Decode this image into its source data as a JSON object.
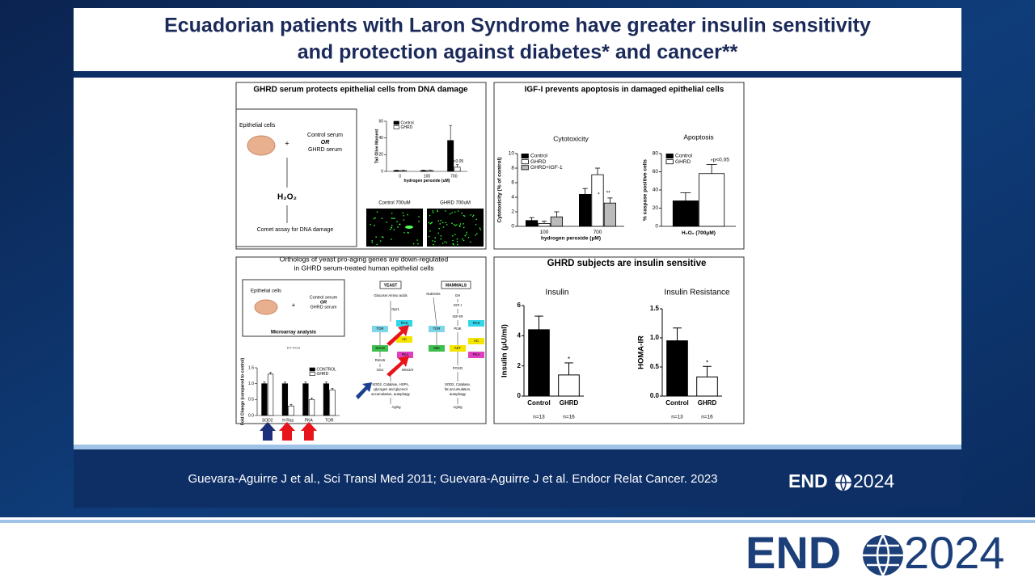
{
  "header": {
    "title": [
      "Ecuadorian patients with Laron Syndrome have greater insulin sensitivity",
      "and protection against diabetes* and cancer**"
    ]
  },
  "panels": [
    {
      "title": "GHRD serum protects epithelial cells from DNA damage",
      "protocol": {
        "cells": "Epithelial cells",
        "plus": "+",
        "option_a": "Control serum",
        "or": "OR",
        "option_b": "GHRD serum",
        "treatment": "H₂O₂",
        "assay": "Comet assay for DNA damage"
      },
      "images": [
        "Control 700uM",
        "GHRD 700uM"
      ],
      "chart": {
        "type": "bar",
        "ylabel": "Tail Olive Moment",
        "xlabel": "hydrogen peroxide (uM)",
        "categories": [
          0,
          100,
          700
        ],
        "series": [
          {
            "name": "Control",
            "color": "#000000",
            "values": [
              1,
              1,
              37
            ],
            "errors": [
              0.5,
              0.5,
              18
            ]
          },
          {
            "name": "GHRD",
            "color": "#ffffff",
            "values": [
              1,
              1,
              5
            ],
            "errors": [
              0.5,
              0.5,
              3
            ]
          }
        ],
        "ylim": [
          0,
          60
        ],
        "yticks": [
          0,
          20,
          40,
          60
        ],
        "notes": [
          "p<0.05"
        ]
      }
    },
    {
      "title": "IGF-I prevents apoptosis in damaged epithelial cells",
      "charts": [
        {
          "type": "bar",
          "title": "Cytotoxicity",
          "ylabel": "Cytotoxicity (% of control)",
          "xlabel": "hydrogen peroxide (μM)",
          "categories": [
            100,
            700
          ],
          "series": [
            {
              "name": "Control",
              "color": "#000000",
              "values": [
                0.8,
                4.4
              ],
              "errors": [
                0.4,
                0.8
              ]
            },
            {
              "name": "GHRD",
              "color": "#ffffff",
              "values": [
                0.4,
                7.1
              ],
              "errors": [
                0.3,
                0.9
              ]
            },
            {
              "name": "GHRD+IGF-1",
              "color": "#bbbbbb",
              "values": [
                1.3,
                3.2
              ],
              "errors": [
                0.7,
                0.7
              ]
            }
          ],
          "ylim": [
            0,
            10
          ],
          "yticks": [
            0,
            2,
            4,
            6,
            8,
            10
          ],
          "notes": [
            "*",
            "**"
          ]
        },
        {
          "type": "bar",
          "title": "Apoptosis",
          "ylabel": "% caspase positive cells",
          "xlabel": "H₂O₂ (700μM)",
          "series": [
            {
              "name": "Control",
              "color": "#000000",
              "values": [
                28
              ],
              "errors": [
                9
              ]
            },
            {
              "name": "GHRD",
              "color": "#ffffff",
              "values": [
                58
              ],
              "errors": [
                10
              ]
            }
          ],
          "ylim": [
            0,
            80
          ],
          "yticks": [
            0,
            20,
            40,
            60,
            80
          ],
          "notes": [
            "*",
            "p<0.05"
          ]
        }
      ]
    },
    {
      "title": [
        "Orthologs of yeast pro-aging genes are down-regulated",
        "in GHRD serum-treated human epithelial cells"
      ],
      "protocol": {
        "cells": "Epithelial cells",
        "plus": "+",
        "option_a": "Control serum",
        "or": "OR",
        "option_b": "GHRD serum",
        "analysis": "Microarray analysis",
        "validation": "RT-PCR"
      },
      "pathway": {
        "yeast": "YEAST",
        "mammals": "MAMMALS",
        "nodes": [
          "Glucose/ Amino acids",
          "Gpr1",
          "TOR",
          "RAS",
          "SCH9",
          "AC",
          "PKA",
          "Rim15",
          "Gis1",
          "Msn2/4",
          "SOD2, Catalase, HSPs,",
          "glycogen and glycerol",
          "accumulation, autophagy",
          "Aging",
          "Nutrients",
          "GH",
          "IGF-I",
          "IGF-IR",
          "TOR",
          "PI3K",
          "RAS",
          "S6K",
          "AKT",
          "AC",
          "PKA",
          "FOXO",
          "SOD2, Catalase,",
          "fat accumulation,",
          "autophagy",
          "Aging"
        ]
      },
      "chart": {
        "type": "bar",
        "ylabel": "Fold Change (compared to control)",
        "categories": [
          "SOD2",
          "H Ras",
          "PKA",
          "TOR"
        ],
        "series": [
          {
            "name": "CONTROL",
            "color": "#000000",
            "values": [
              1,
              1,
              1,
              1
            ],
            "errors": [
              0.05,
              0.05,
              0.05,
              0.05
            ]
          },
          {
            "name": "GHRD",
            "color": "#ffffff",
            "values": [
              1.3,
              0.3,
              0.5,
              0.8
            ],
            "errors": [
              0.05,
              0.05,
              0.05,
              0.05
            ]
          }
        ],
        "ylim": [
          0,
          1.5
        ],
        "yticks": [
          {
            "value": 0,
            "label": "0.0"
          },
          0.5,
          {
            "value": 1,
            "label": "1.0"
          },
          1.5
        ]
      }
    },
    {
      "title": "GHRD subjects are insulin sensitive",
      "charts": [
        {
          "type": "bar",
          "title": "Insulin",
          "ylabel": "Insulin (μU/ml)",
          "categories": [
            "Control",
            "GHRD"
          ],
          "n": [
            "n=13",
            "n=16"
          ],
          "series": [
            {
              "colors": [
                "#000000",
                "#ffffff"
              ],
              "values": [
                4.4,
                1.4
              ],
              "errors": [
                0.9,
                0.8
              ]
            }
          ],
          "ylim": [
            0,
            6
          ],
          "yticks": [
            0,
            2,
            4,
            6
          ],
          "notes": [
            "*"
          ]
        },
        {
          "type": "bar",
          "title": "Insulin Resistance",
          "ylabel": "HOMA-IR",
          "categories": [
            "Control",
            "GHRD"
          ],
          "n": [
            "n=13",
            "n=16"
          ],
          "series": [
            {
              "colors": [
                "#000000",
                "#ffffff"
              ],
              "values": [
                0.95,
                0.33
              ],
              "errors": [
                0.22,
                0.18
              ]
            }
          ],
          "ylim": [
            0,
            1.5
          ],
          "yticks": [
            {
              "value": 0,
              "label": "0.0"
            },
            0.5,
            {
              "value": 1,
              "label": "1.0"
            },
            1.5
          ],
          "notes": [
            "*"
          ]
        }
      ]
    }
  ],
  "footer": {
    "citation": "Guevara-Aguirre J et al., Sci Transl Med 2011; Guevara-Aguirre J et al. Endocr Relat Cancer. 2023",
    "logo_word": "END",
    "logo_year": "2024"
  }
}
